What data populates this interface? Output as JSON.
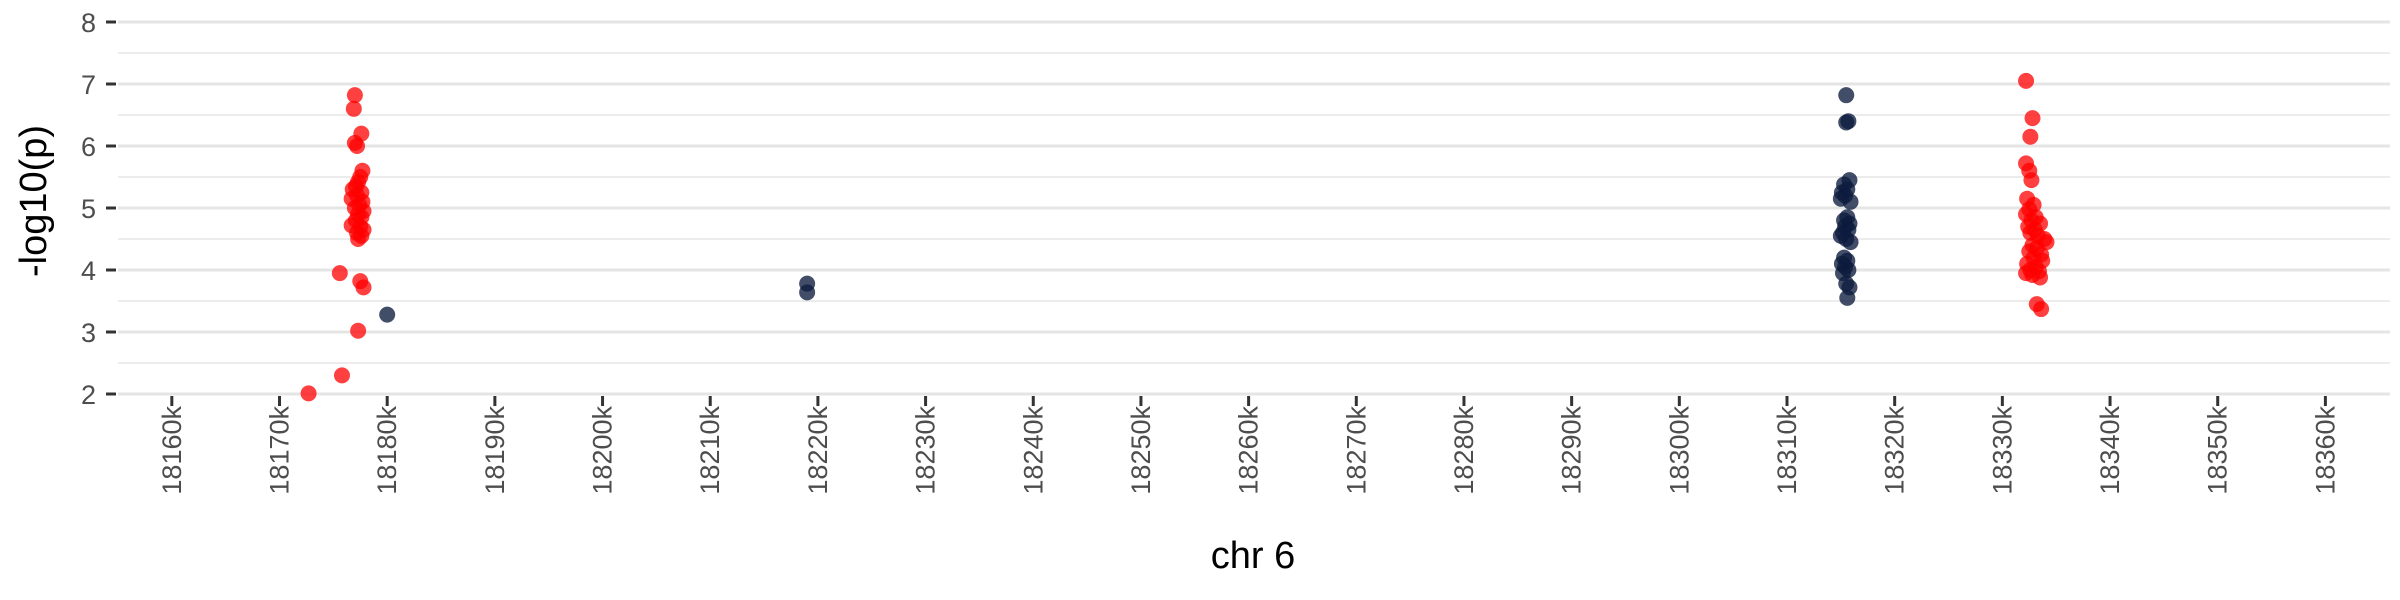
{
  "chart_data": {
    "type": "scatter",
    "title": "",
    "xlabel": "chr 6",
    "ylabel": "-log10(p)",
    "xlim": [
      18155,
      18366
    ],
    "ylim": [
      2,
      8
    ],
    "x_ticks": [
      18160,
      18170,
      18180,
      18190,
      18200,
      18210,
      18220,
      18230,
      18240,
      18250,
      18260,
      18270,
      18280,
      18290,
      18300,
      18310,
      18320,
      18330,
      18340,
      18350,
      18360
    ],
    "x_tick_labels": [
      "18160k",
      "18170k",
      "18180k",
      "18190k",
      "18200k",
      "18210k",
      "18220k",
      "18230k",
      "18240k",
      "18250k",
      "18260k",
      "18270k",
      "18280k",
      "18290k",
      "18300k",
      "18310k",
      "18320k",
      "18330k",
      "18340k",
      "18350k",
      "18360k"
    ],
    "y_ticks": [
      2,
      3,
      4,
      5,
      6,
      7,
      8
    ],
    "y_tick_labels": [
      "2",
      "3",
      "4",
      "5",
      "6",
      "7",
      "8"
    ],
    "grid": "horizontal",
    "colors": {
      "red": "#ff0000",
      "navy": "#0d1b3e",
      "grid": "#e5e5e5"
    },
    "series": [
      {
        "color": "#ff0000",
        "points": [
          {
            "x": 18172.7,
            "y": 2.01
          },
          {
            "x": 18175.8,
            "y": 2.3
          },
          {
            "x": 18175.6,
            "y": 3.95
          },
          {
            "x": 18177.0,
            "y": 6.82
          },
          {
            "x": 18176.9,
            "y": 6.6
          },
          {
            "x": 18177.6,
            "y": 6.2
          },
          {
            "x": 18177.0,
            "y": 6.05
          },
          {
            "x": 18177.2,
            "y": 6.0
          },
          {
            "x": 18177.7,
            "y": 5.6
          },
          {
            "x": 18177.5,
            "y": 5.5
          },
          {
            "x": 18177.3,
            "y": 5.42
          },
          {
            "x": 18177.1,
            "y": 5.35
          },
          {
            "x": 18176.8,
            "y": 5.3
          },
          {
            "x": 18177.6,
            "y": 5.25
          },
          {
            "x": 18177.2,
            "y": 5.2
          },
          {
            "x": 18176.7,
            "y": 5.15
          },
          {
            "x": 18177.7,
            "y": 5.1
          },
          {
            "x": 18177.4,
            "y": 5.05
          },
          {
            "x": 18177.0,
            "y": 5.0
          },
          {
            "x": 18177.8,
            "y": 4.95
          },
          {
            "x": 18177.3,
            "y": 4.9
          },
          {
            "x": 18177.6,
            "y": 4.85
          },
          {
            "x": 18177.1,
            "y": 4.8
          },
          {
            "x": 18176.7,
            "y": 4.72
          },
          {
            "x": 18177.5,
            "y": 4.7
          },
          {
            "x": 18177.8,
            "y": 4.65
          },
          {
            "x": 18177.2,
            "y": 4.6
          },
          {
            "x": 18177.6,
            "y": 4.55
          },
          {
            "x": 18177.3,
            "y": 4.5
          },
          {
            "x": 18177.5,
            "y": 3.82
          },
          {
            "x": 18177.8,
            "y": 3.72
          },
          {
            "x": 18177.3,
            "y": 3.02
          },
          {
            "x": 18332.2,
            "y": 7.05
          },
          {
            "x": 18332.8,
            "y": 6.45
          },
          {
            "x": 18332.6,
            "y": 6.15
          },
          {
            "x": 18332.2,
            "y": 5.72
          },
          {
            "x": 18332.5,
            "y": 5.6
          },
          {
            "x": 18332.7,
            "y": 5.45
          },
          {
            "x": 18332.3,
            "y": 5.15
          },
          {
            "x": 18332.9,
            "y": 5.05
          },
          {
            "x": 18332.5,
            "y": 4.98
          },
          {
            "x": 18332.2,
            "y": 4.9
          },
          {
            "x": 18333.1,
            "y": 4.85
          },
          {
            "x": 18332.7,
            "y": 4.8
          },
          {
            "x": 18333.5,
            "y": 4.75
          },
          {
            "x": 18332.4,
            "y": 4.7
          },
          {
            "x": 18333.0,
            "y": 4.65
          },
          {
            "x": 18332.6,
            "y": 4.6
          },
          {
            "x": 18333.3,
            "y": 4.55
          },
          {
            "x": 18333.9,
            "y": 4.5
          },
          {
            "x": 18334.1,
            "y": 4.45
          },
          {
            "x": 18332.8,
            "y": 4.4
          },
          {
            "x": 18333.2,
            "y": 4.35
          },
          {
            "x": 18332.5,
            "y": 4.3
          },
          {
            "x": 18333.6,
            "y": 4.25
          },
          {
            "x": 18332.9,
            "y": 4.2
          },
          {
            "x": 18333.7,
            "y": 4.15
          },
          {
            "x": 18332.3,
            "y": 4.1
          },
          {
            "x": 18333.1,
            "y": 4.05
          },
          {
            "x": 18332.6,
            "y": 4.0
          },
          {
            "x": 18333.4,
            "y": 3.98
          },
          {
            "x": 18332.2,
            "y": 3.95
          },
          {
            "x": 18332.8,
            "y": 3.92
          },
          {
            "x": 18333.5,
            "y": 3.88
          },
          {
            "x": 18333.2,
            "y": 3.45
          },
          {
            "x": 18333.6,
            "y": 3.37
          }
        ]
      },
      {
        "color": "#0d1b3e",
        "points": [
          {
            "x": 18180.0,
            "y": 3.28
          },
          {
            "x": 18219.0,
            "y": 3.78
          },
          {
            "x": 18219.0,
            "y": 3.64
          },
          {
            "x": 18315.5,
            "y": 6.82
          },
          {
            "x": 18315.5,
            "y": 6.38
          },
          {
            "x": 18315.7,
            "y": 6.4
          },
          {
            "x": 18315.8,
            "y": 5.45
          },
          {
            "x": 18315.3,
            "y": 5.38
          },
          {
            "x": 18315.6,
            "y": 5.3
          },
          {
            "x": 18315.1,
            "y": 5.25
          },
          {
            "x": 18315.4,
            "y": 5.2
          },
          {
            "x": 18315.0,
            "y": 5.15
          },
          {
            "x": 18315.9,
            "y": 5.1
          },
          {
            "x": 18315.6,
            "y": 4.85
          },
          {
            "x": 18315.3,
            "y": 4.8
          },
          {
            "x": 18315.8,
            "y": 4.75
          },
          {
            "x": 18315.4,
            "y": 4.7
          },
          {
            "x": 18315.7,
            "y": 4.65
          },
          {
            "x": 18315.2,
            "y": 4.6
          },
          {
            "x": 18315.0,
            "y": 4.55
          },
          {
            "x": 18315.5,
            "y": 4.5
          },
          {
            "x": 18315.9,
            "y": 4.45
          },
          {
            "x": 18315.3,
            "y": 4.2
          },
          {
            "x": 18315.6,
            "y": 4.15
          },
          {
            "x": 18315.1,
            "y": 4.1
          },
          {
            "x": 18315.4,
            "y": 4.05
          },
          {
            "x": 18315.7,
            "y": 4.0
          },
          {
            "x": 18315.2,
            "y": 3.95
          },
          {
            "x": 18315.5,
            "y": 3.78
          },
          {
            "x": 18315.8,
            "y": 3.72
          },
          {
            "x": 18315.6,
            "y": 3.55
          }
        ]
      }
    ]
  }
}
